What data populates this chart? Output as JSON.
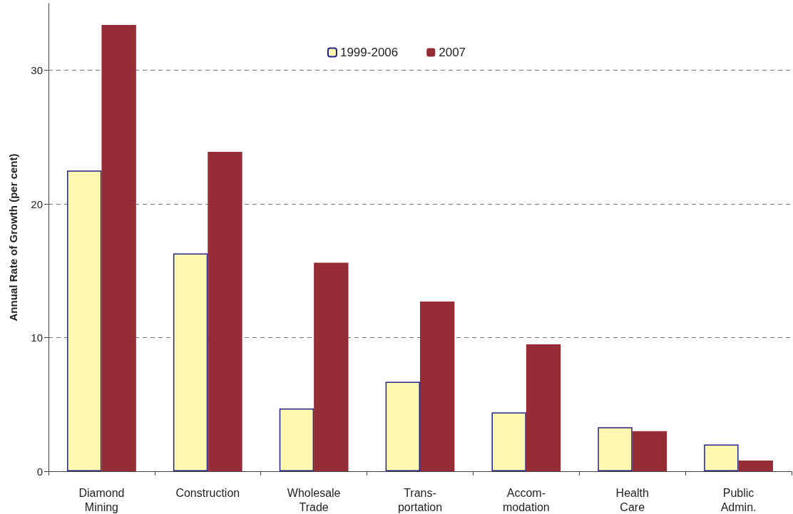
{
  "chart_data": {
    "type": "bar",
    "ylabel": "Annual Rate of Growth (per cent)",
    "categories": [
      "Diamond\nMining",
      "Construction",
      "Wholesale\nTrade",
      "Trans-\nportation",
      "Accom-\nmodation",
      "Health\nCare",
      "Public\nAdmin."
    ],
    "series": [
      {
        "name": "1999-2006",
        "color": "#fff8b0",
        "values": [
          22.5,
          16.3,
          4.7,
          6.7,
          4.4,
          3.3,
          2.0
        ]
      },
      {
        "name": "2007",
        "color": "#962c35",
        "values": [
          33.4,
          23.9,
          15.6,
          12.7,
          9.5,
          3.0,
          0.8
        ]
      }
    ],
    "ylim": [
      0,
      35
    ],
    "yticks": [
      0,
      10,
      20,
      30
    ],
    "grid": "y",
    "legend": "top"
  }
}
